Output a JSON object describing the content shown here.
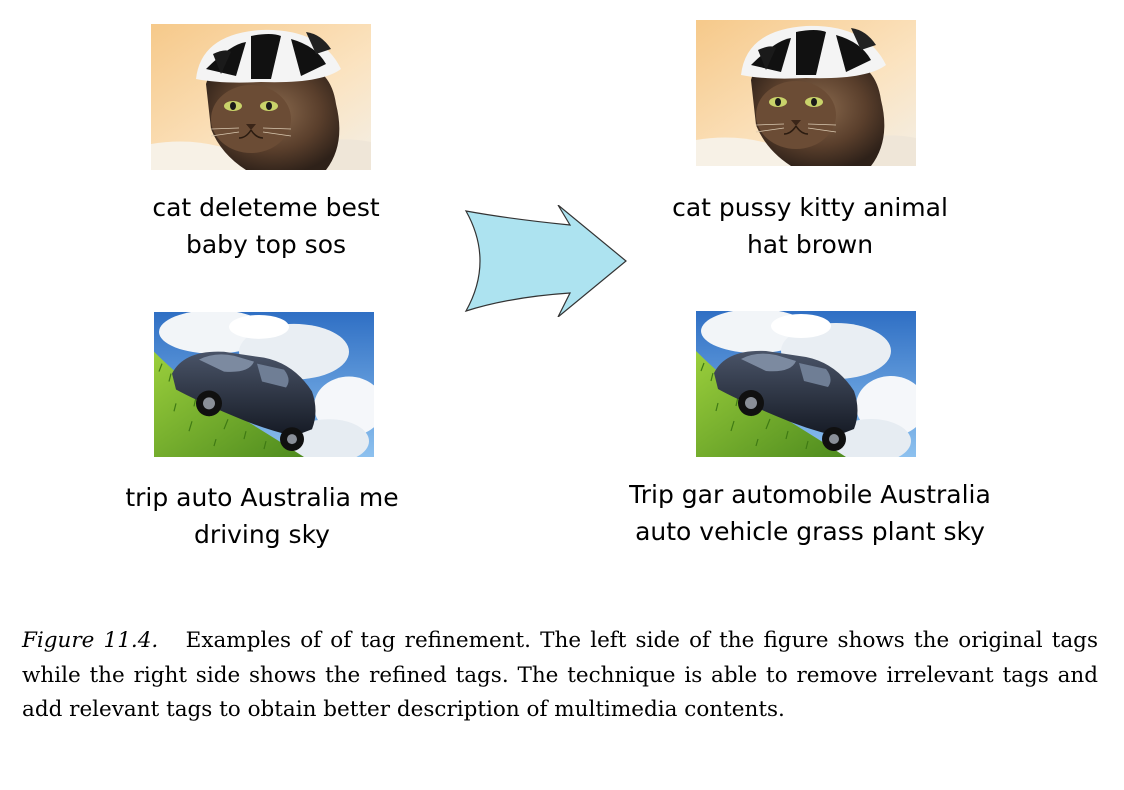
{
  "figure": {
    "left": {
      "cat": {
        "image_name": "cat-wearing-striped-hat-photo",
        "tags": [
          "cat deleteme best",
          "baby top sos"
        ]
      },
      "car": {
        "image_name": "car-on-grassy-hill-photo",
        "tags": [
          "trip auto Australia me",
          "driving sky"
        ]
      }
    },
    "right": {
      "cat": {
        "image_name": "cat-wearing-striped-hat-photo",
        "tags": [
          "cat pussy kitty animal",
          "hat brown"
        ]
      },
      "car": {
        "image_name": "car-on-grassy-hill-photo",
        "tags": [
          "Trip gar automobile Australia",
          "auto vehicle grass plant sky"
        ]
      }
    },
    "arrow": {
      "icon": "right-arrow-icon",
      "fill": "#ade3f0",
      "stroke": "#333333"
    }
  },
  "caption": {
    "label": "Figure 11.4.",
    "text": "Examples of of tag refinement. The left side of the figure shows the original tags while the right side shows the refined tags. The technique is able to remove irrelevant tags and add relevant tags to obtain better description of multimedia contents."
  }
}
